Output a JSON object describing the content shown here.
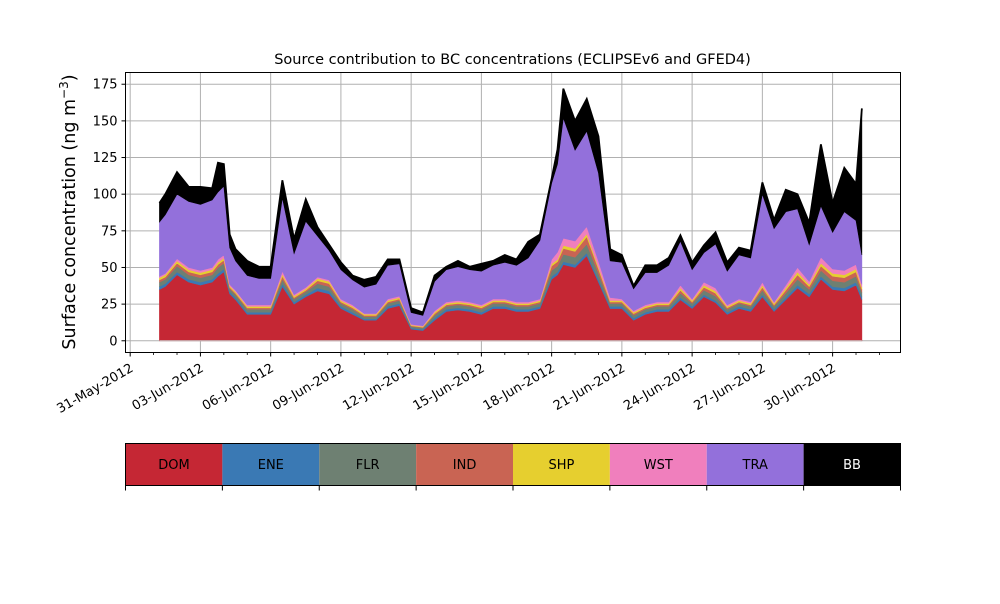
{
  "chart_data": {
    "type": "area",
    "stacked": true,
    "title": "Source contribution to BC concentrations (ECLIPSEv6 and GFED4)",
    "ylabel": "Surface concentration (ng m",
    "ylabel_superscript": "−3",
    "ylabel_close": ")",
    "xlabel": "",
    "x_unit": "day of June 2012",
    "xlim": [
      -0.2,
      32.9
    ],
    "ylim": [
      -8,
      183
    ],
    "yticks": [
      0,
      25,
      50,
      75,
      100,
      125,
      150,
      175
    ],
    "xticks": [
      {
        "x": 0,
        "label": "31-May-2012"
      },
      {
        "x": 3,
        "label": "03-Jun-2012"
      },
      {
        "x": 6,
        "label": "06-Jun-2012"
      },
      {
        "x": 9,
        "label": "09-Jun-2012"
      },
      {
        "x": 12,
        "label": "12-Jun-2012"
      },
      {
        "x": 15,
        "label": "15-Jun-2012"
      },
      {
        "x": 18,
        "label": "18-Jun-2012"
      },
      {
        "x": 21,
        "label": "21-Jun-2012"
      },
      {
        "x": 24,
        "label": "24-Jun-2012"
      },
      {
        "x": 27,
        "label": "27-Jun-2012"
      },
      {
        "x": 30,
        "label": "30-Jun-2012"
      }
    ],
    "grid": true,
    "legend_placement": "colorbar below plot",
    "x": [
      1.25,
      1.5,
      2.0,
      2.5,
      3.0,
      3.5,
      3.75,
      4.0,
      4.25,
      4.5,
      5.0,
      5.5,
      6.0,
      6.5,
      7.0,
      7.5,
      8.0,
      8.5,
      9.0,
      9.5,
      10.0,
      10.5,
      11.0,
      11.5,
      12.0,
      12.5,
      13.0,
      13.5,
      14.0,
      14.5,
      15.0,
      15.5,
      16.0,
      16.5,
      17.0,
      17.5,
      18.0,
      18.25,
      18.5,
      19.0,
      19.5,
      20.0,
      20.5,
      21.0,
      21.5,
      22.0,
      22.5,
      23.0,
      23.5,
      24.0,
      24.5,
      25.0,
      25.5,
      26.0,
      26.5,
      27.0,
      27.5,
      28.0,
      28.5,
      29.0,
      29.5,
      30.0,
      30.5,
      31.0,
      31.25
    ],
    "series": [
      {
        "name": "DOM",
        "color": "#c52734",
        "values": [
          35,
          37,
          45,
          40,
          38,
          40,
          44,
          47,
          32,
          28,
          18,
          18,
          18,
          37,
          25,
          30,
          34,
          32,
          22,
          18,
          14,
          14,
          22,
          24,
          8,
          7,
          14,
          20,
          21,
          20,
          18,
          22,
          22,
          20,
          20,
          22,
          42,
          45,
          52,
          50,
          58,
          40,
          22,
          22,
          14,
          18,
          20,
          20,
          28,
          22,
          30,
          26,
          18,
          22,
          20,
          30,
          20,
          28,
          36,
          30,
          42,
          35,
          34,
          38,
          28
        ]
      },
      {
        "name": "ENE",
        "color": "#3a79b4",
        "values": [
          2,
          2,
          2,
          2,
          2,
          2,
          2,
          2,
          1.5,
          1.5,
          1.5,
          1.5,
          1.5,
          2,
          1.5,
          1.5,
          2,
          2,
          1.5,
          1.5,
          1,
          1,
          1.5,
          1.5,
          0.8,
          0.8,
          1.5,
          1.5,
          1.5,
          1.5,
          1.5,
          1.5,
          1.5,
          1.5,
          1.5,
          1.5,
          2,
          2,
          2,
          2,
          2,
          2,
          1.5,
          1.5,
          1.5,
          1.5,
          1.5,
          1.5,
          1.5,
          1.5,
          1.5,
          1.5,
          1.5,
          1.5,
          1.5,
          1.5,
          1.5,
          1.5,
          2,
          2,
          2,
          2,
          2,
          2,
          2
        ]
      },
      {
        "name": "FLR",
        "color": "#6e8072",
        "values": [
          3,
          3,
          4,
          3,
          3,
          3,
          4,
          4,
          2,
          2,
          2,
          2,
          2,
          3,
          2,
          2,
          3,
          3,
          2,
          2,
          1.5,
          1.5,
          2,
          2,
          1,
          1,
          2,
          2,
          2,
          2,
          2,
          2,
          2,
          2,
          2,
          2,
          4,
          4,
          5,
          5,
          6,
          4,
          2,
          2,
          2,
          2,
          2,
          2,
          3,
          2,
          3,
          3,
          2,
          2,
          2,
          3,
          2,
          3,
          4,
          3,
          4,
          4,
          4,
          4,
          3
        ]
      },
      {
        "name": "IND",
        "color": "#c96453",
        "values": [
          1.5,
          1.5,
          2,
          2,
          2,
          2,
          2,
          2,
          1,
          1,
          1,
          1,
          1,
          2,
          1,
          1,
          2,
          2,
          1,
          1,
          0.8,
          0.8,
          1,
          1,
          0.5,
          0.5,
          1,
          1,
          1,
          1,
          1,
          1,
          1,
          1,
          1,
          1,
          3,
          3,
          4,
          4,
          5,
          3,
          1,
          1,
          1,
          1,
          1,
          1,
          2,
          1,
          2,
          2,
          1,
          1,
          1,
          2,
          1,
          2,
          3,
          2,
          3,
          3,
          3,
          3,
          2
        ]
      },
      {
        "name": "SHP",
        "color": "#e6cf2f",
        "values": [
          1.5,
          1.5,
          1.5,
          1.5,
          1.5,
          1.5,
          1.5,
          1.5,
          1,
          1,
          1,
          1,
          1,
          1.5,
          1,
          1,
          1.5,
          1.5,
          1,
          1,
          0.8,
          0.8,
          1,
          1,
          0.5,
          0.5,
          1,
          1,
          1,
          1,
          1,
          1,
          1,
          1,
          1,
          1,
          1.5,
          1.5,
          2,
          2,
          2,
          1.5,
          1,
          1,
          1,
          1,
          1,
          1,
          1.5,
          1,
          1.5,
          1.5,
          1,
          1,
          1,
          1.5,
          1,
          1.5,
          2,
          1.5,
          2,
          2,
          2,
          2,
          1.5
        ]
      },
      {
        "name": "WST",
        "color": "#f07fbd",
        "values": [
          1,
          1,
          1.5,
          1.5,
          1.5,
          1.5,
          2,
          2,
          1,
          1,
          1,
          1,
          1,
          2,
          1,
          1,
          1,
          1,
          1,
          1,
          0.5,
          0.5,
          1,
          1,
          0.5,
          0.5,
          1,
          1,
          1,
          1,
          1,
          1,
          1,
          1,
          1,
          1,
          3,
          5,
          5,
          5,
          5,
          4,
          2,
          1,
          1,
          1,
          1,
          1,
          2,
          1,
          2,
          2,
          1,
          1,
          1,
          2,
          1,
          2,
          3,
          2,
          4,
          3,
          3,
          3,
          2
        ]
      },
      {
        "name": "TRA",
        "color": "#9370db",
        "values": [
          37,
          40,
          44,
          45,
          45,
          46,
          46,
          47,
          25,
          20,
          20,
          18,
          18,
          50,
          28,
          45,
          28,
          20,
          20,
          17,
          18,
          20,
          23,
          22,
          8,
          7,
          20,
          22,
          23,
          22,
          23,
          23,
          25,
          25,
          30,
          40,
          52,
          60,
          82,
          62,
          65,
          60,
          25,
          25,
          15,
          22,
          20,
          25,
          30,
          20,
          20,
          30,
          23,
          30,
          30,
          60,
          50,
          50,
          40,
          25,
          35,
          25,
          40,
          30,
          20
        ]
      },
      {
        "name": "BB",
        "color": "#000000",
        "values": [
          13,
          14,
          15,
          10,
          12,
          8,
          20,
          15,
          9,
          8,
          10,
          8,
          8,
          12,
          10,
          15,
          6,
          4,
          5,
          3,
          5,
          5,
          4,
          3,
          3,
          2,
          4,
          2,
          4,
          2,
          5,
          3,
          5,
          4,
          11,
          4,
          3,
          10,
          20,
          20,
          22,
          25,
          8,
          5,
          2,
          5,
          5,
          5,
          4,
          5,
          5,
          8,
          6,
          5,
          5,
          8,
          6,
          15,
          10,
          15,
          42,
          20,
          30,
          25,
          100
        ]
      }
    ]
  }
}
